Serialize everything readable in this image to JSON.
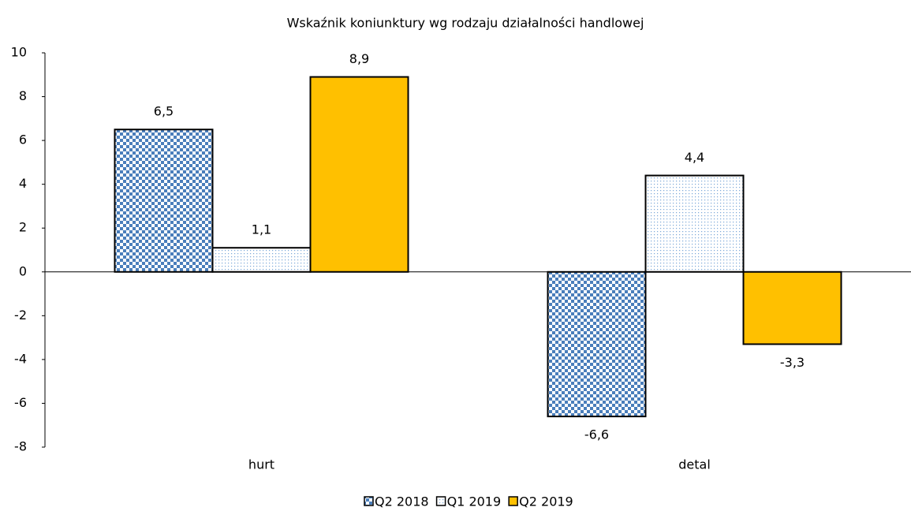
{
  "chart_data": {
    "type": "bar",
    "title": "Wskaźnik koniunktury wg rodzaju działalności handlowej",
    "categories": [
      "hurt",
      "detal"
    ],
    "series": [
      {
        "name": "Q2 2018",
        "color": "#4a7ebb",
        "pattern": "checker",
        "values": [
          6.5,
          -6.6
        ],
        "value_labels": [
          "6,5",
          "-6,6"
        ]
      },
      {
        "name": "Q1 2019",
        "color": "#7aa7d8",
        "pattern": "dots",
        "values": [
          1.1,
          4.4
        ],
        "value_labels": [
          "1,1",
          "4,4"
        ]
      },
      {
        "name": "Q2 2019",
        "color": "#ffc000",
        "pattern": "solid",
        "values": [
          8.9,
          -3.3
        ],
        "value_labels": [
          "8,9",
          "-3,3"
        ]
      }
    ],
    "ylim": [
      -8,
      10
    ],
    "yticks": [
      -8,
      -6,
      -4,
      -2,
      0,
      2,
      4,
      6,
      8,
      10
    ],
    "legend": "bottom"
  }
}
